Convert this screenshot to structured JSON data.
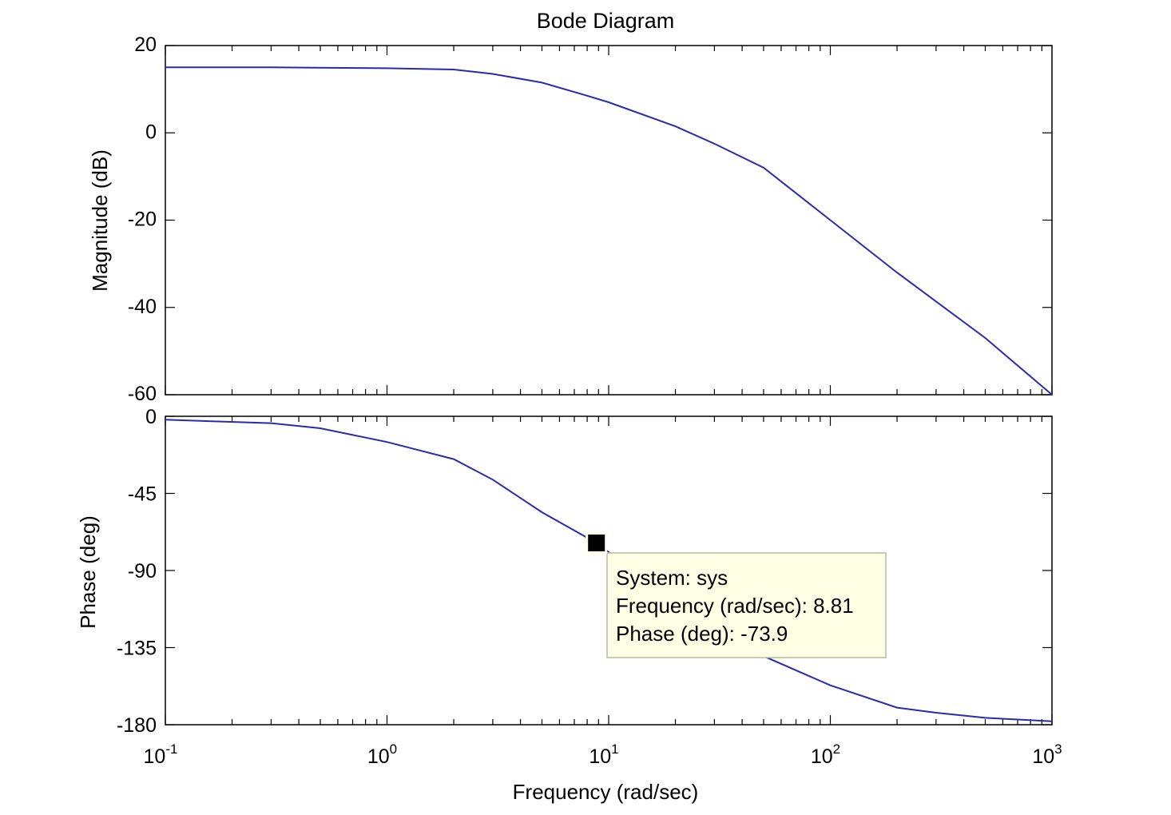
{
  "chart_data": {
    "type": "line",
    "title": "Bode Diagram",
    "xlabel": "Frequency  (rad/sec)",
    "xscale": "log",
    "xlim": [
      0.1,
      1000
    ],
    "x_tick_labels": [
      {
        "base": "10",
        "exp": "-1"
      },
      {
        "base": "10",
        "exp": "0"
      },
      {
        "base": "10",
        "exp": "1"
      },
      {
        "base": "10",
        "exp": "2"
      },
      {
        "base": "10",
        "exp": "3"
      }
    ],
    "line_color": "#2a2ab0",
    "subplots": [
      {
        "name": "magnitude",
        "ylabel": "Magnitude (dB)",
        "ylim": [
          -60,
          20
        ],
        "yticks": [
          20,
          0,
          -20,
          -40,
          -60
        ],
        "series": [
          {
            "x": [
              0.1,
              0.3,
              1,
              2,
              3,
              5,
              8,
              10,
              20,
              30,
              50,
              100,
              200,
              500,
              1000
            ],
            "y": [
              15,
              15,
              14.8,
              14.5,
              13.5,
              11.5,
              8.5,
              7,
              1.5,
              -2.5,
              -8,
              -20,
              -32,
              -47,
              -60
            ]
          }
        ]
      },
      {
        "name": "phase",
        "ylabel": "Phase (deg)",
        "ylim": [
          -180,
          0
        ],
        "yticks": [
          0,
          -45,
          -90,
          -135,
          -180
        ],
        "series": [
          {
            "x": [
              0.1,
              0.3,
              0.5,
              1,
              2,
              3,
              5,
              8.81,
              12,
              20,
              30,
              50,
              100,
              200,
              300,
              500,
              1000
            ],
            "y": [
              -2,
              -4,
              -7,
              -15,
              -25,
              -37,
              -56,
              -73.9,
              -87,
              -107,
              -122,
              -140,
              -157,
              -170,
              -173,
              -176,
              -178
            ]
          }
        ]
      }
    ],
    "datatip": {
      "x": 8.81,
      "y": -73.9,
      "lines": [
        "System: sys",
        "Frequency (rad/sec): 8.81",
        "Phase (deg): -73.9"
      ]
    }
  }
}
